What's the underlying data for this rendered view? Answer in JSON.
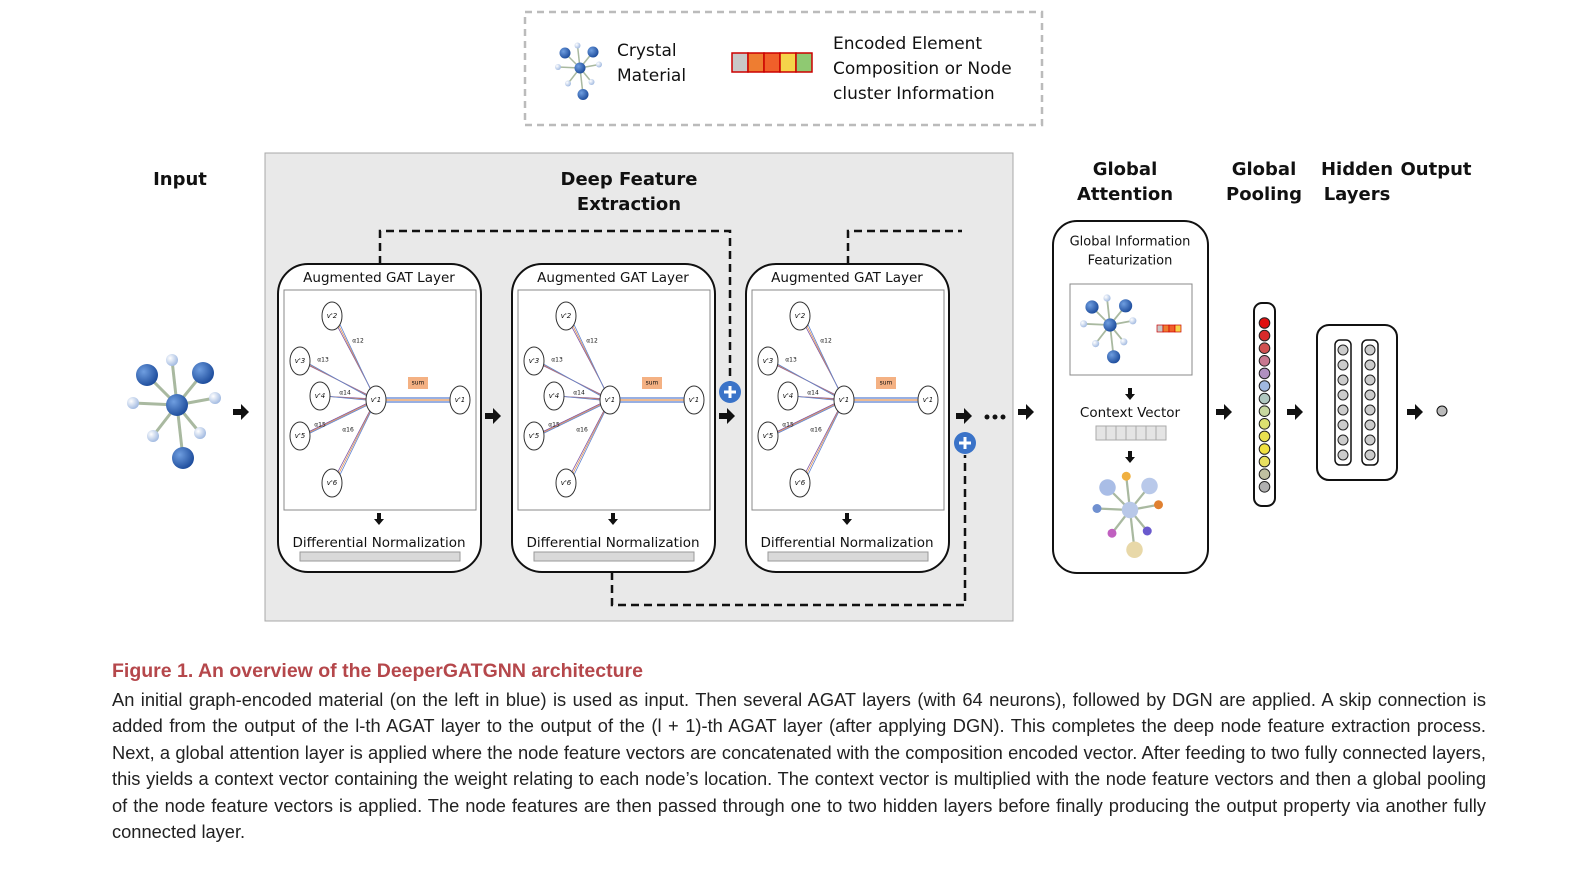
{
  "legend": {
    "crystal": [
      "Crystal",
      "Material"
    ],
    "encoded": [
      "Encoded Element",
      "Composition or Node",
      "cluster Information"
    ]
  },
  "input": "Input",
  "deep_feature": [
    "Deep Feature",
    "Extraction"
  ],
  "gat_layers": [
    {
      "title": "Augmented GAT Layer",
      "sum": "sum",
      "norm": "Differential Normalization"
    },
    {
      "title": "Augmented GAT Layer",
      "sum": "sum",
      "norm": "Differential Normalization"
    },
    {
      "title": "Augmented GAT Layer",
      "sum": "sum",
      "norm": "Differential Normalization"
    }
  ],
  "graph": {
    "nodes": [
      "v'2",
      "v'3",
      "v'4",
      "v'5",
      "v'6",
      "v'1",
      "v'1"
    ],
    "edges": [
      "α12",
      "α13",
      "α14",
      "α15",
      "α16"
    ]
  },
  "global_attention": {
    "title": [
      "Global",
      "Attention"
    ],
    "featurization": [
      "Global Information",
      "Featurization"
    ],
    "context": "Context Vector"
  },
  "global_pooling": [
    "Global",
    "Pooling"
  ],
  "hidden_layers": [
    "Hidden",
    "Layers"
  ],
  "output": "Output",
  "caption": {
    "title": "Figure 1.  An overview of the DeeperGATGNN architecture",
    "body": "An initial graph-encoded material (on the left in blue) is used as input. Then several AGAT layers (with 64 neurons), followed by DGN are applied. A skip connection is added from the output of the l-th AGAT layer to the output of the (l + 1)-th AGAT layer (after applying DGN). This completes the deep node feature extraction process. Next, a global attention layer is applied where the node feature vectors are concatenated with the composition encoded vector. After feeding to two fully connected layers, this yields a context vector containing the weight relating to each node’s location. The context vector is multiplied with the node feature vectors and then a global pooling of the node feature vectors is applied. The node features are then passed through one to two hidden layers before finally producing the output property via another fully connected layer."
  }
}
